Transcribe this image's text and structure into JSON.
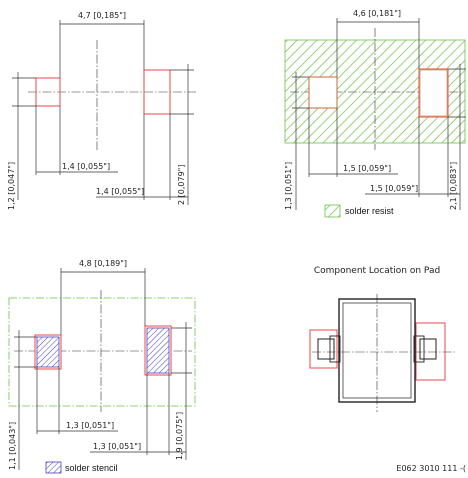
{
  "q1": {
    "top_dim": "4,7 [0,185\"]",
    "left_dim": "1,2 [0,047\"]",
    "bottom_dim1": "1,4 [0,055\"]",
    "bottom_dim2": "1,4 [0,055\"]",
    "right_dim": "2 [0,079\"]"
  },
  "q2": {
    "top_dim": "4,6 [0,181\"]",
    "left_dim": "1,3 [0,051\"]",
    "bottom_dim1": "1,5 [0,059\"]",
    "bottom_dim2": "1,5 [0,059\"]",
    "right_dim": "2,1 [0,083\"]",
    "legend_label": "solder resist"
  },
  "q3": {
    "top_dim": "4,8 [0,189\"]",
    "left_dim": "1,1 [0,043\"]",
    "bottom_dim1": "1,3 [0,051\"]",
    "bottom_dim2": "1,3 [0,051\"]",
    "right_dim": "1,9 [0,075\"]",
    "legend_label": "solder stencil"
  },
  "q4": {
    "title": "Component Location on Pad"
  },
  "ref_code": "E062 3010 111 -(",
  "colors": {
    "pad": "#e8484f",
    "resist": "#6cc24a",
    "stencil": "#4a3fbf",
    "line": "#333333"
  }
}
